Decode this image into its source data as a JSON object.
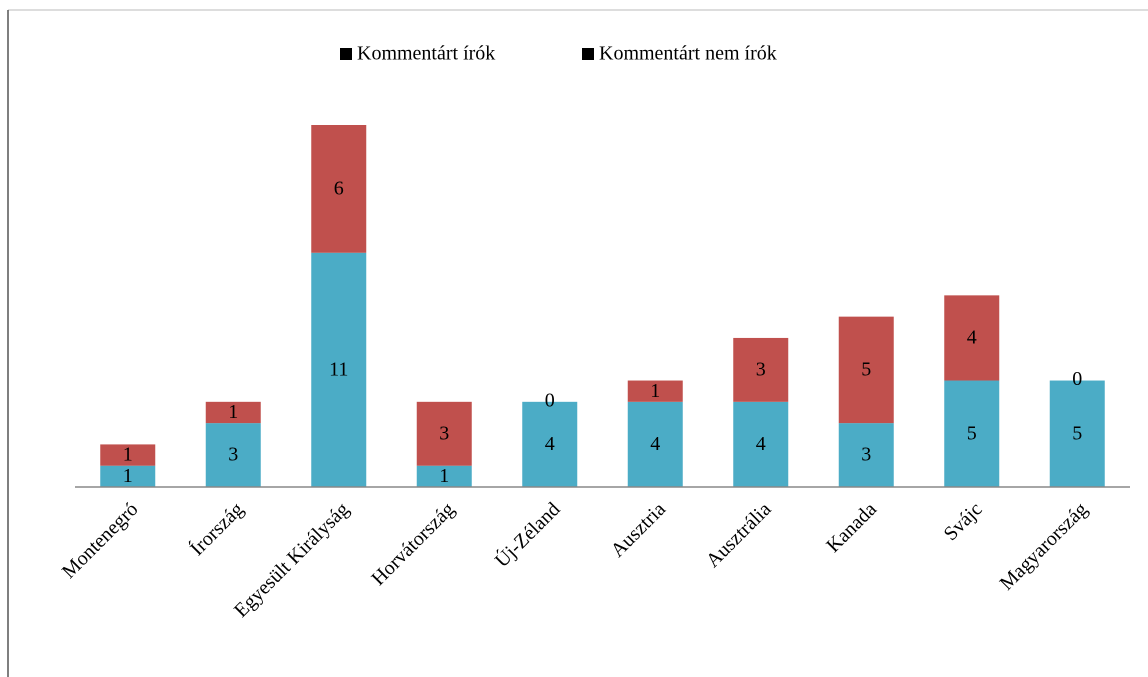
{
  "chart_data": {
    "type": "stacked_bar",
    "categories": [
      "Montenegró",
      "Írország",
      "Egyesült Királyság",
      "Horvátország",
      "Új-Zéland",
      "Ausztria",
      "Ausztrália",
      "Kanada",
      "Svájc",
      "Magyarország"
    ],
    "series": [
      {
        "name": "Kommentárt írók",
        "color": "#4bacc6",
        "values": [
          1,
          3,
          11,
          1,
          4,
          4,
          4,
          3,
          5,
          5
        ]
      },
      {
        "name": "Kommentárt nem írók",
        "color": "#c0504d",
        "values": [
          1,
          1,
          6,
          3,
          0,
          1,
          3,
          5,
          4,
          0
        ]
      }
    ],
    "legend": "top",
    "legend_marker_color": "#000000"
  }
}
